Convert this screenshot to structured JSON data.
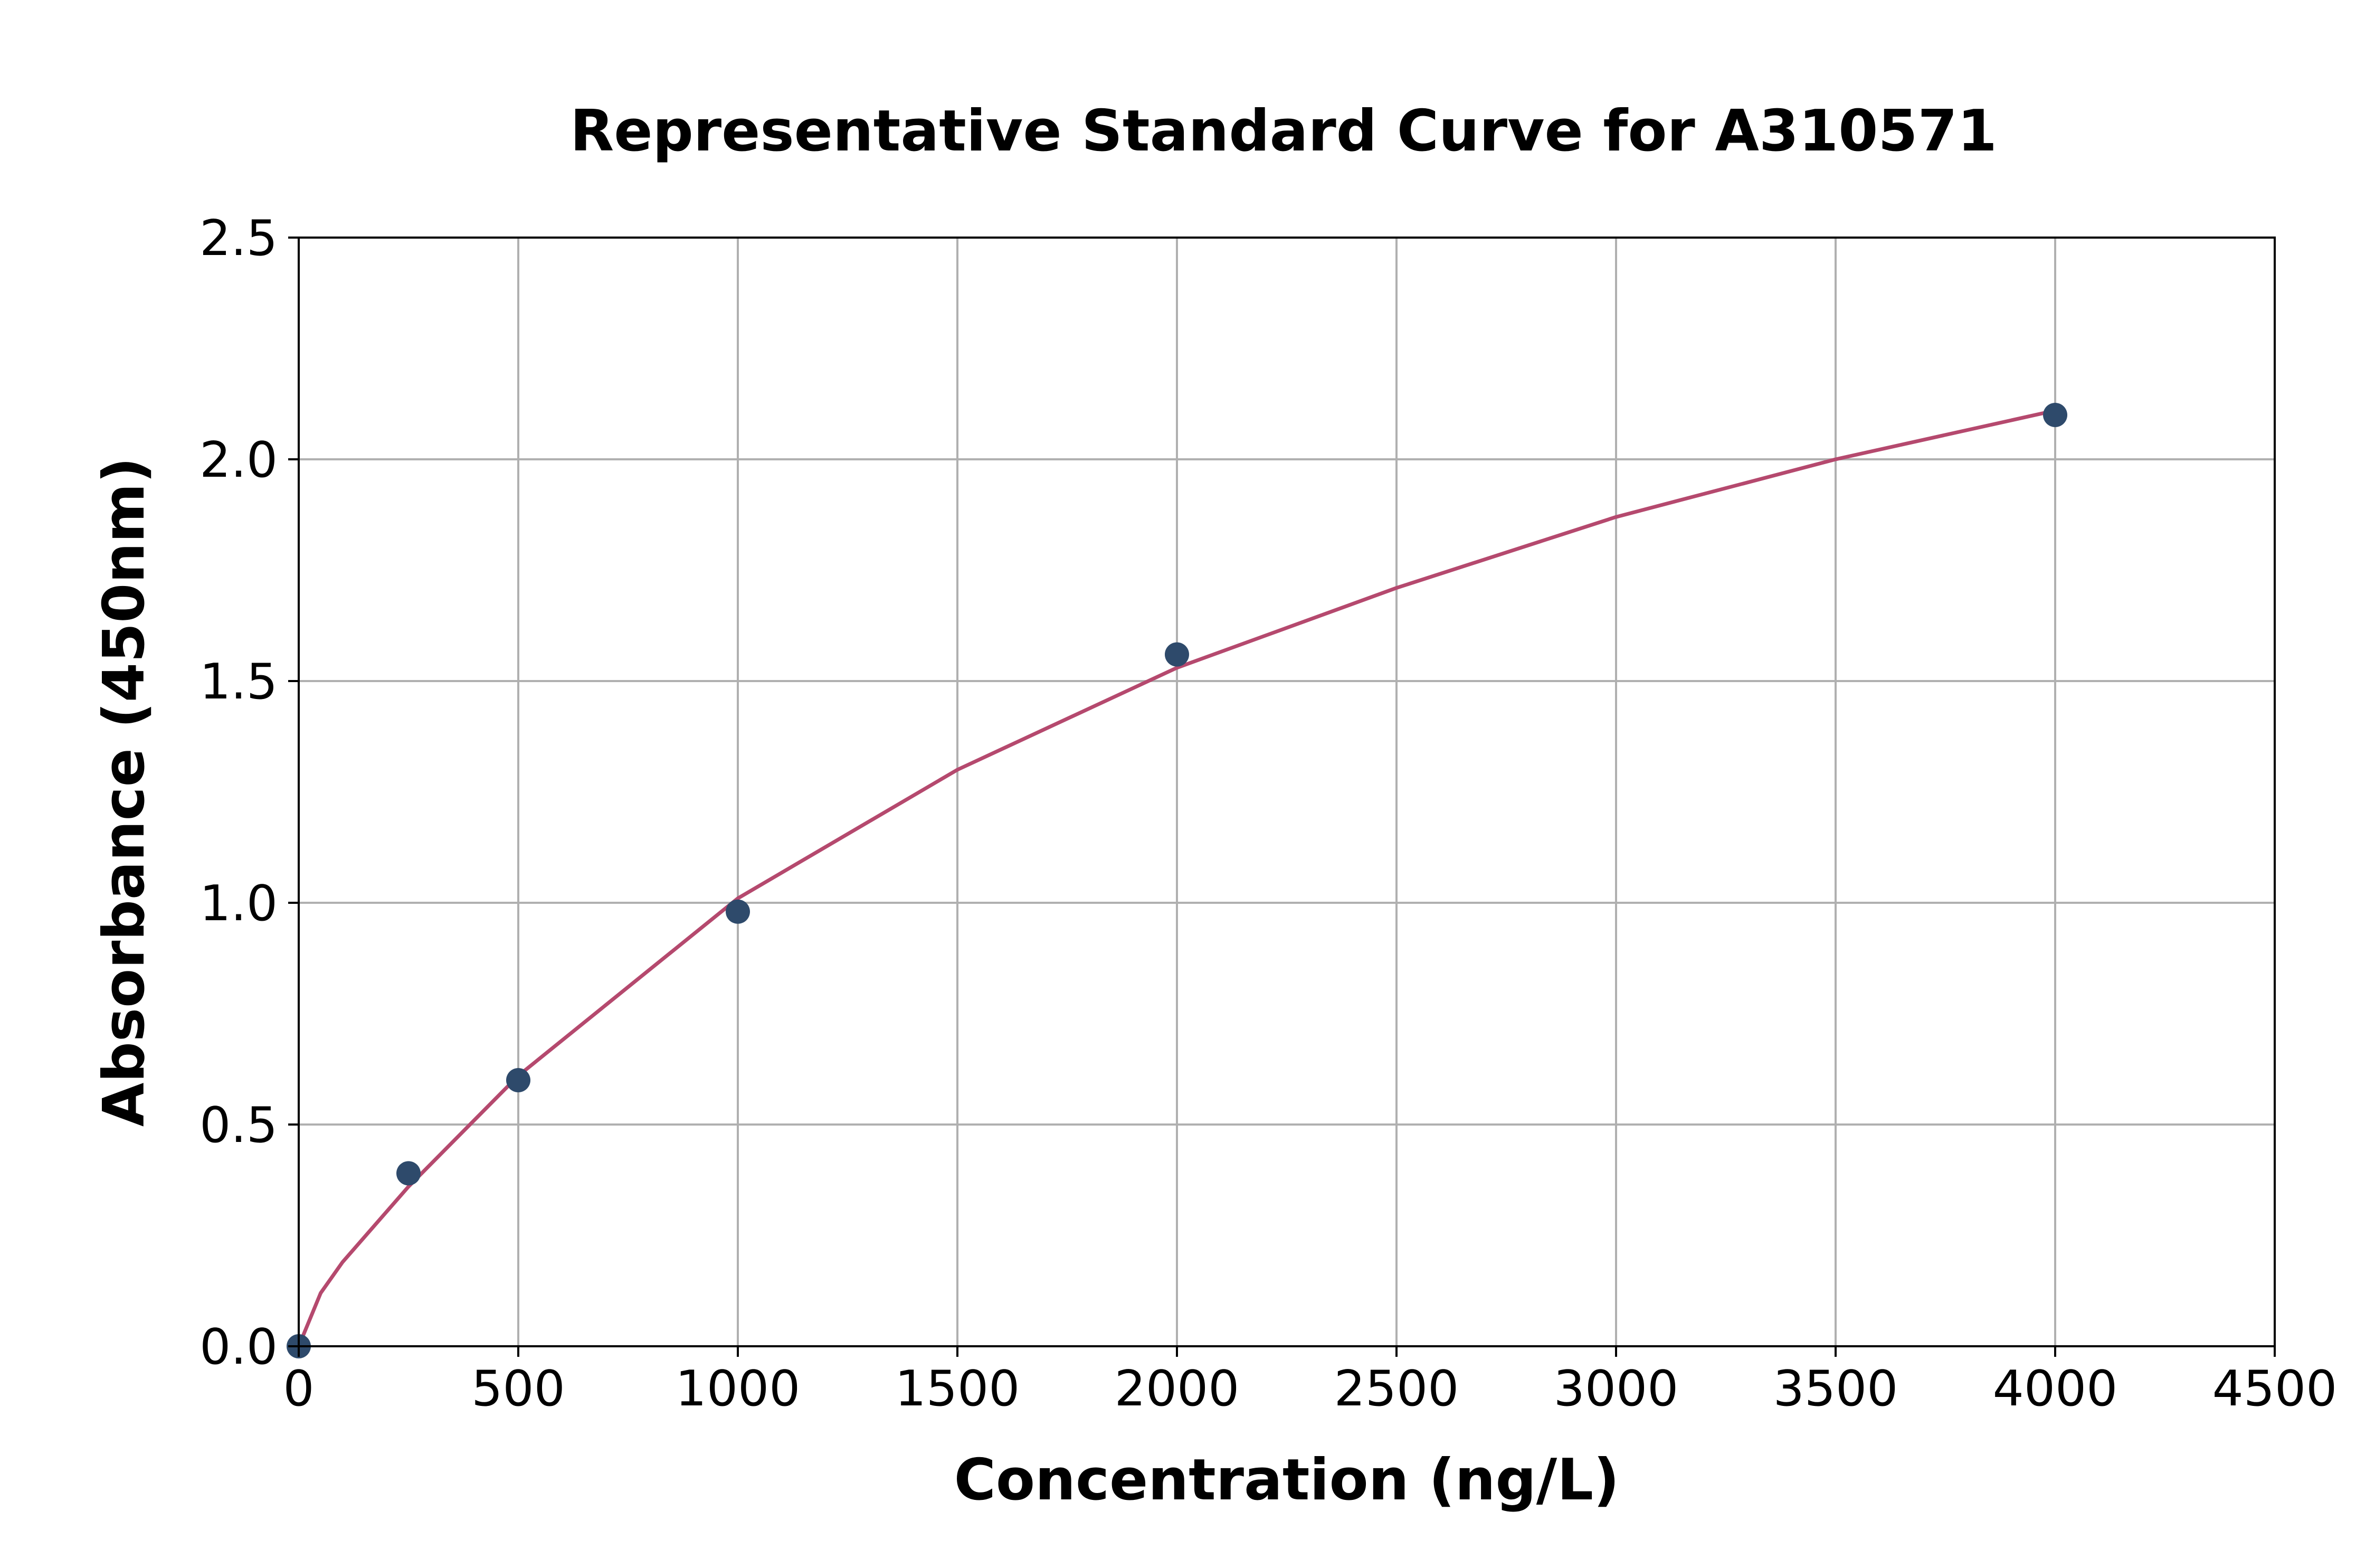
{
  "chart_data": {
    "type": "scatter",
    "title": "Representative Standard Curve for A310571",
    "xlabel": "Concentration (ng/L)",
    "ylabel": "Absorbance (450nm)",
    "xlim": [
      0,
      4500
    ],
    "ylim": [
      0,
      2.5
    ],
    "x_ticks": [
      "0",
      "500",
      "1000",
      "1500",
      "2000",
      "2500",
      "3000",
      "3500",
      "4000",
      "4500"
    ],
    "y_ticks": [
      "0.0",
      "0.5",
      "1.0",
      "1.5",
      "2.0",
      "2.5"
    ],
    "grid": true,
    "series": [
      {
        "kind": "points",
        "color": "#2e4a6b",
        "x": [
          0,
          250,
          500,
          1000,
          2000,
          4000
        ],
        "y": [
          0.0,
          0.39,
          0.6,
          0.98,
          1.56,
          2.1
        ]
      },
      {
        "kind": "fit-curve",
        "color": "#b5496e",
        "x": [
          0,
          50,
          100,
          250,
          500,
          1000,
          1500,
          2000,
          2500,
          3000,
          3500,
          4000
        ],
        "y": [
          0.0,
          0.12,
          0.19,
          0.36,
          0.61,
          1.01,
          1.3,
          1.53,
          1.71,
          1.87,
          2.0,
          2.11
        ]
      }
    ]
  }
}
